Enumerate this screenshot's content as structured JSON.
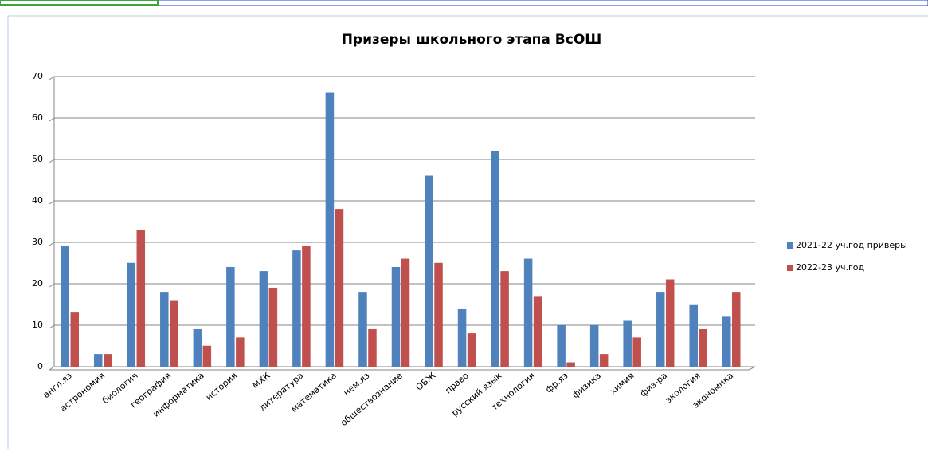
{
  "chart_data": {
    "type": "bar",
    "title": "Призеры школьного этапа  ВсОШ",
    "categories": [
      "англ.яз",
      "астрономия",
      "биология",
      "география",
      "информатика",
      "история",
      "МХК",
      "литература",
      "математика",
      "нем.яз",
      "обществознание",
      "ОБЖ",
      "право",
      "русский язык",
      "технология",
      "фр.яз",
      "физика",
      "химия",
      "физ-ра",
      "экология",
      "экономика"
    ],
    "series": [
      {
        "name": "2021-22 уч.год приверы",
        "color": "#4f81bd",
        "values": [
          29,
          3,
          25,
          18,
          9,
          24,
          23,
          28,
          66,
          18,
          24,
          46,
          14,
          52,
          26,
          10,
          10,
          11,
          18,
          15,
          12
        ]
      },
      {
        "name": "2022-23 уч.год",
        "color": "#c0504d",
        "values": [
          13,
          3,
          33,
          16,
          5,
          7,
          19,
          29,
          38,
          9,
          26,
          25,
          8,
          23,
          17,
          1,
          3,
          7,
          21,
          9,
          18
        ]
      }
    ],
    "ylim": [
      0,
      70
    ],
    "yticks": [
      0,
      10,
      20,
      30,
      40,
      50,
      60,
      70
    ],
    "grid": true,
    "legend": "right"
  }
}
